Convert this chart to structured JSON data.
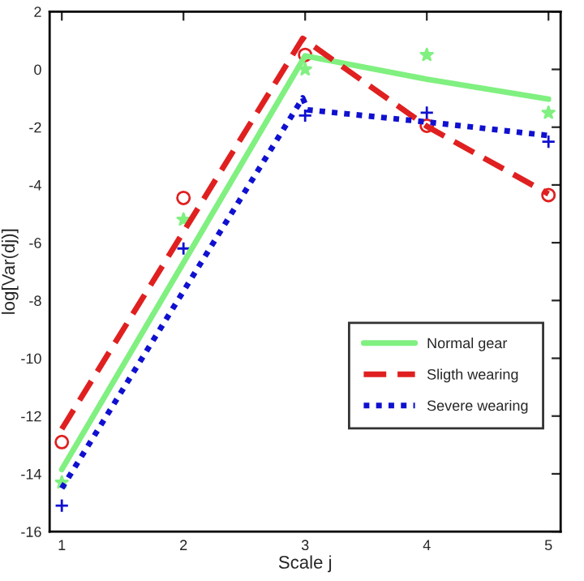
{
  "chart_data": {
    "type": "line",
    "xlabel": "Scale j",
    "ylabel": "log[Var(dj)]",
    "xlim": [
      0.9,
      5.1
    ],
    "ylim": [
      -16,
      2
    ],
    "xticks": [
      1,
      2,
      3,
      4,
      5
    ],
    "yticks": [
      -16,
      -14,
      -12,
      -10,
      -8,
      -6,
      -4,
      -2,
      0,
      2
    ],
    "grid": false,
    "legend": "right",
    "series": [
      {
        "name": "Normal gear",
        "color": "#80f080",
        "line_style": "solid",
        "marker": "none",
        "x": [
          1,
          3,
          4,
          5
        ],
        "values": [
          -13.85,
          0.47,
          -0.34,
          -1.03
        ]
      },
      {
        "name": "Sligth wearing",
        "color": "#e02020",
        "line_style": "dashed",
        "marker": "none",
        "x": [
          1,
          2.98,
          4,
          5
        ],
        "values": [
          -12.45,
          1.07,
          -1.97,
          -4.31
        ]
      },
      {
        "name": "Severe wearing",
        "color": "#1010d0",
        "line_style": "dotted",
        "marker": "none",
        "x": [
          1,
          2.98,
          3.02,
          4,
          5
        ],
        "values": [
          -14.5,
          -0.99,
          -1.4,
          -1.82,
          -2.29
        ]
      },
      {
        "type": "scatter",
        "color": "#80f080",
        "marker": "star",
        "x": [
          1,
          2,
          3,
          4,
          5
        ],
        "values": [
          -14.3,
          -5.2,
          0.0,
          0.5,
          -1.5
        ]
      },
      {
        "type": "scatter",
        "color": "#e02020",
        "marker": "circle",
        "x": [
          1,
          2,
          3,
          4,
          5
        ],
        "values": [
          -12.9,
          -4.45,
          0.5,
          -1.95,
          -4.35
        ]
      },
      {
        "type": "scatter",
        "color": "#1010d0",
        "marker": "cross",
        "x": [
          1,
          2,
          3,
          4,
          5
        ],
        "values": [
          -15.1,
          -6.2,
          -1.6,
          -1.5,
          -2.5
        ]
      }
    ]
  }
}
